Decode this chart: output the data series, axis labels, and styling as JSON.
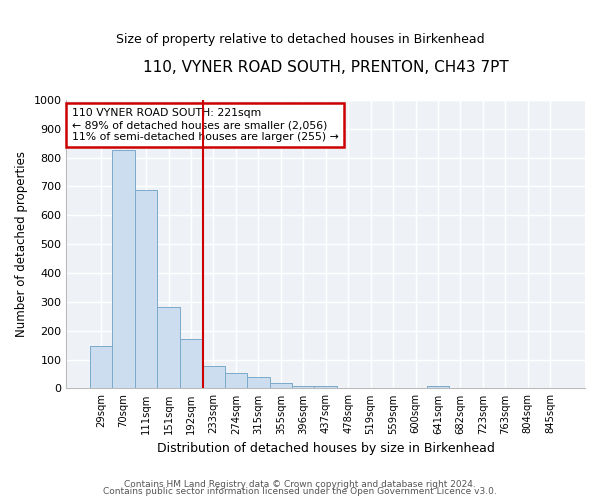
{
  "title": "110, VYNER ROAD SOUTH, PRENTON, CH43 7PT",
  "subtitle": "Size of property relative to detached houses in Birkenhead",
  "xlabel": "Distribution of detached houses by size in Birkenhead",
  "ylabel": "Number of detached properties",
  "bar_color": "#ccddef",
  "bar_edge_color": "#7aaacb",
  "bar_categories": [
    "29sqm",
    "70sqm",
    "111sqm",
    "151sqm",
    "192sqm",
    "233sqm",
    "274sqm",
    "315sqm",
    "355sqm",
    "396sqm",
    "437sqm",
    "478sqm",
    "519sqm",
    "559sqm",
    "600sqm",
    "641sqm",
    "682sqm",
    "723sqm",
    "763sqm",
    "804sqm",
    "845sqm"
  ],
  "bar_values": [
    148,
    826,
    687,
    281,
    170,
    79,
    54,
    38,
    20,
    10,
    7,
    0,
    0,
    0,
    0,
    10,
    0,
    0,
    0,
    0,
    0
  ],
  "vline_x_index": 4.55,
  "vline_color": "#cc0000",
  "annotation_line1": "110 VYNER ROAD SOUTH: 221sqm",
  "annotation_line2": "← 89% of detached houses are smaller (2,056)",
  "annotation_line3": "11% of semi-detached houses are larger (255) →",
  "annotation_box_color": "#cc0000",
  "ylim": [
    0,
    1000
  ],
  "yticks": [
    0,
    100,
    200,
    300,
    400,
    500,
    600,
    700,
    800,
    900,
    1000
  ],
  "background_color": "#eef2f7",
  "grid_color": "#ffffff",
  "footer1": "Contains HM Land Registry data © Crown copyright and database right 2024.",
  "footer2": "Contains public sector information licensed under the Open Government Licence v3.0."
}
